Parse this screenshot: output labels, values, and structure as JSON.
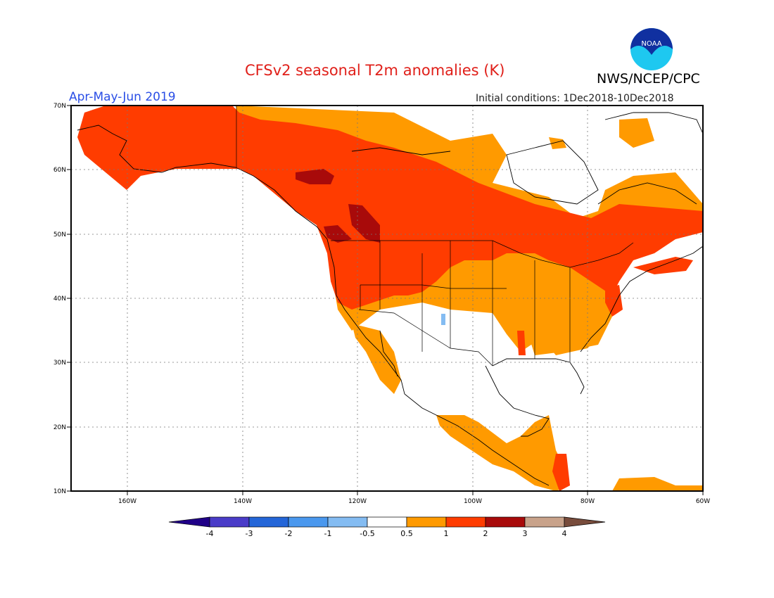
{
  "title": "CFSv2 seasonal T2m anomalies (K)",
  "organization": "NWS/NCEP/CPC",
  "logo_text": "NOAA",
  "season": "Apr-May-Jun 2019",
  "initial_conditions": "Initial conditions: 1Dec2018-10Dec2018",
  "lat_labels": [
    "70N",
    "60N",
    "50N",
    "40N",
    "30N",
    "20N",
    "10N"
  ],
  "lon_labels": [
    "160W",
    "140W",
    "120W",
    "100W",
    "80W",
    "60W"
  ],
  "colorbar": {
    "colors": [
      "#200088",
      "#4a3cc8",
      "#2466d8",
      "#4a98ee",
      "#84bcf2",
      "#ffffff",
      "#ff9a00",
      "#ff3c00",
      "#a80a0a",
      "#c8a28a",
      "#784c3c"
    ],
    "labels": [
      "-4",
      "-3",
      "-2",
      "-1",
      "-0.5",
      "0.5",
      "1",
      "2",
      "3",
      "4"
    ]
  },
  "legend_colors": {
    "above_0_5_to_1": "#ff9a00",
    "above_1_to_2": "#ff3c00",
    "above_2_to_3": "#a80a0a"
  }
}
